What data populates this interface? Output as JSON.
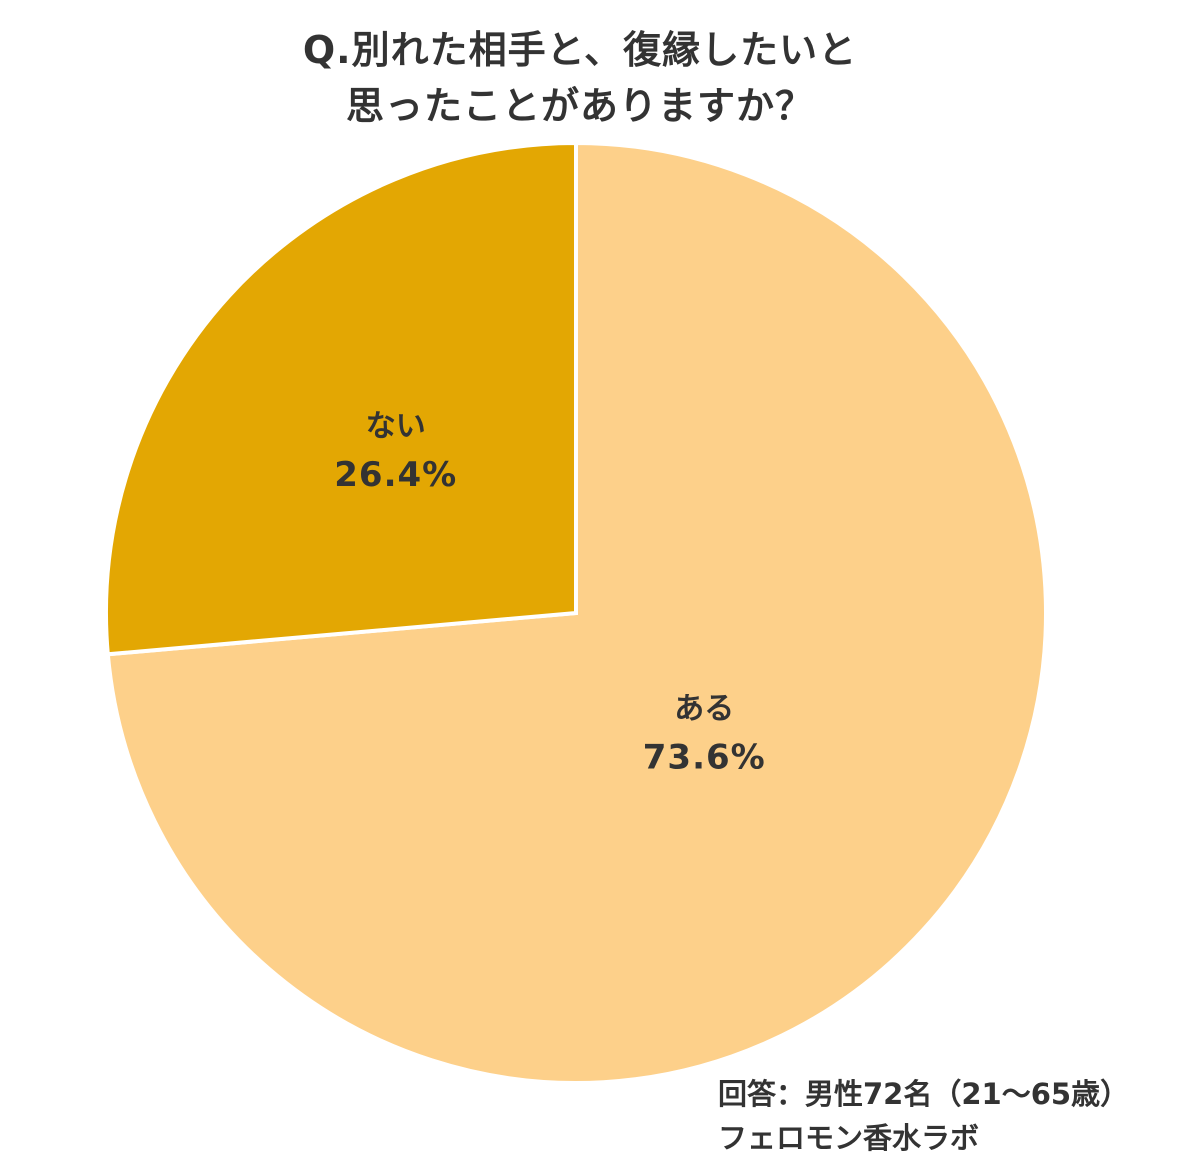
{
  "chart_data": {
    "type": "pie",
    "title_lines": [
      "Q.別れた相手と、復縁したいと",
      "思ったことがありますか？"
    ],
    "slices": [
      {
        "label": "ある",
        "value": 73.6,
        "value_text": "73.6%",
        "color": "#fdd08a"
      },
      {
        "label": "ない",
        "value": 26.4,
        "value_text": "26.4%",
        "color": "#e3a703"
      }
    ],
    "start": "12 o'clock",
    "direction": "clockwise",
    "separator_color": "#ffffff"
  },
  "footnote": {
    "respondents": "回答：男性72名（21～65歳）",
    "source": "フェロモン香水ラボ"
  }
}
